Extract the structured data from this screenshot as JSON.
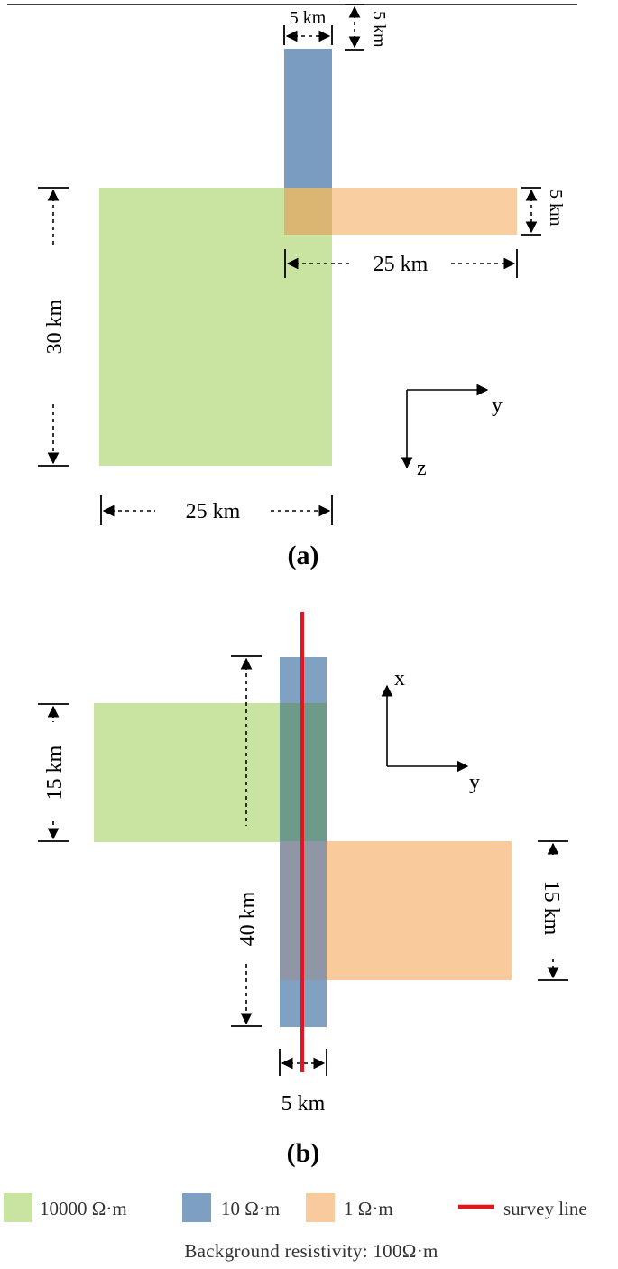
{
  "panel_a": {
    "label": "(a)",
    "dims": {
      "blue_width": "5 km",
      "blue_height": "5 km",
      "orange_height": "5 km",
      "orange_width": "25 km",
      "green_height": "30 km",
      "green_width": "25 km"
    },
    "axes": {
      "horizontal": "y",
      "vertical": "z"
    }
  },
  "panel_b": {
    "label": "(b)",
    "dims": {
      "green_height": "15 km",
      "blue_length": "40 km",
      "orange_height": "15 km",
      "blue_width": "5 km"
    },
    "axes": {
      "horizontal": "y",
      "vertical": "x"
    }
  },
  "legend": {
    "items": [
      {
        "label": "10000 Ω·m",
        "color": "#c8e4a0"
      },
      {
        "label": "10 Ω·m",
        "color": "#7d9fc2"
      },
      {
        "label": "1 Ω·m",
        "color": "#f9cb9c"
      },
      {
        "label": "survey line",
        "color": "#e8141b"
      }
    ],
    "background_note": "Background resistivity: 100Ω·m"
  },
  "colors": {
    "green": "#c8e4a0",
    "blue": "#7a9cc0",
    "orange": "#f8c99a",
    "red": "#e8141b"
  }
}
